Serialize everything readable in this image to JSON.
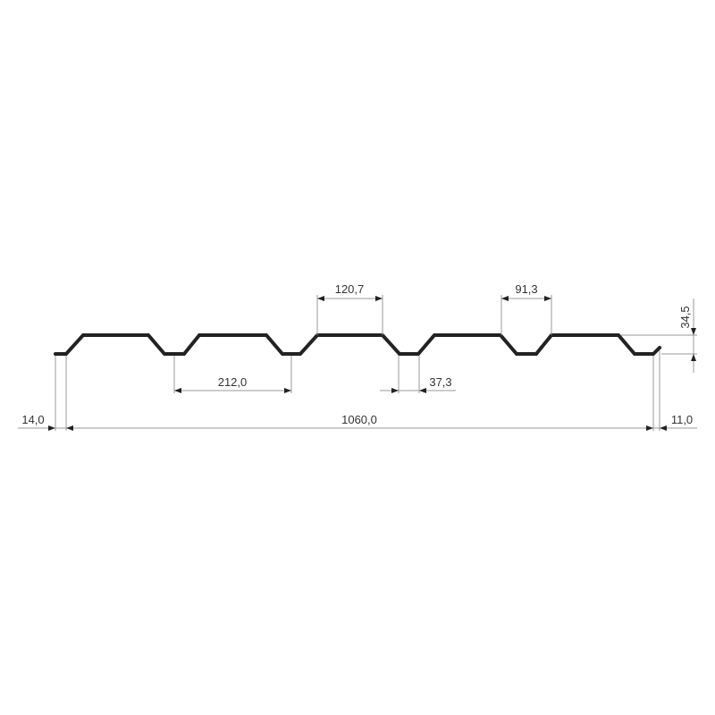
{
  "dimensions": {
    "rib_top_width": "120,7",
    "rib_base_gap": "91,3",
    "pitch": "212,0",
    "trough_width": "37,3",
    "total_width": "1060,0",
    "left_edge": "14,0",
    "right_edge": "11,0",
    "height": "34,5"
  },
  "colors": {
    "profile": "#222222",
    "dimension_lines": "#9a9a9a"
  }
}
